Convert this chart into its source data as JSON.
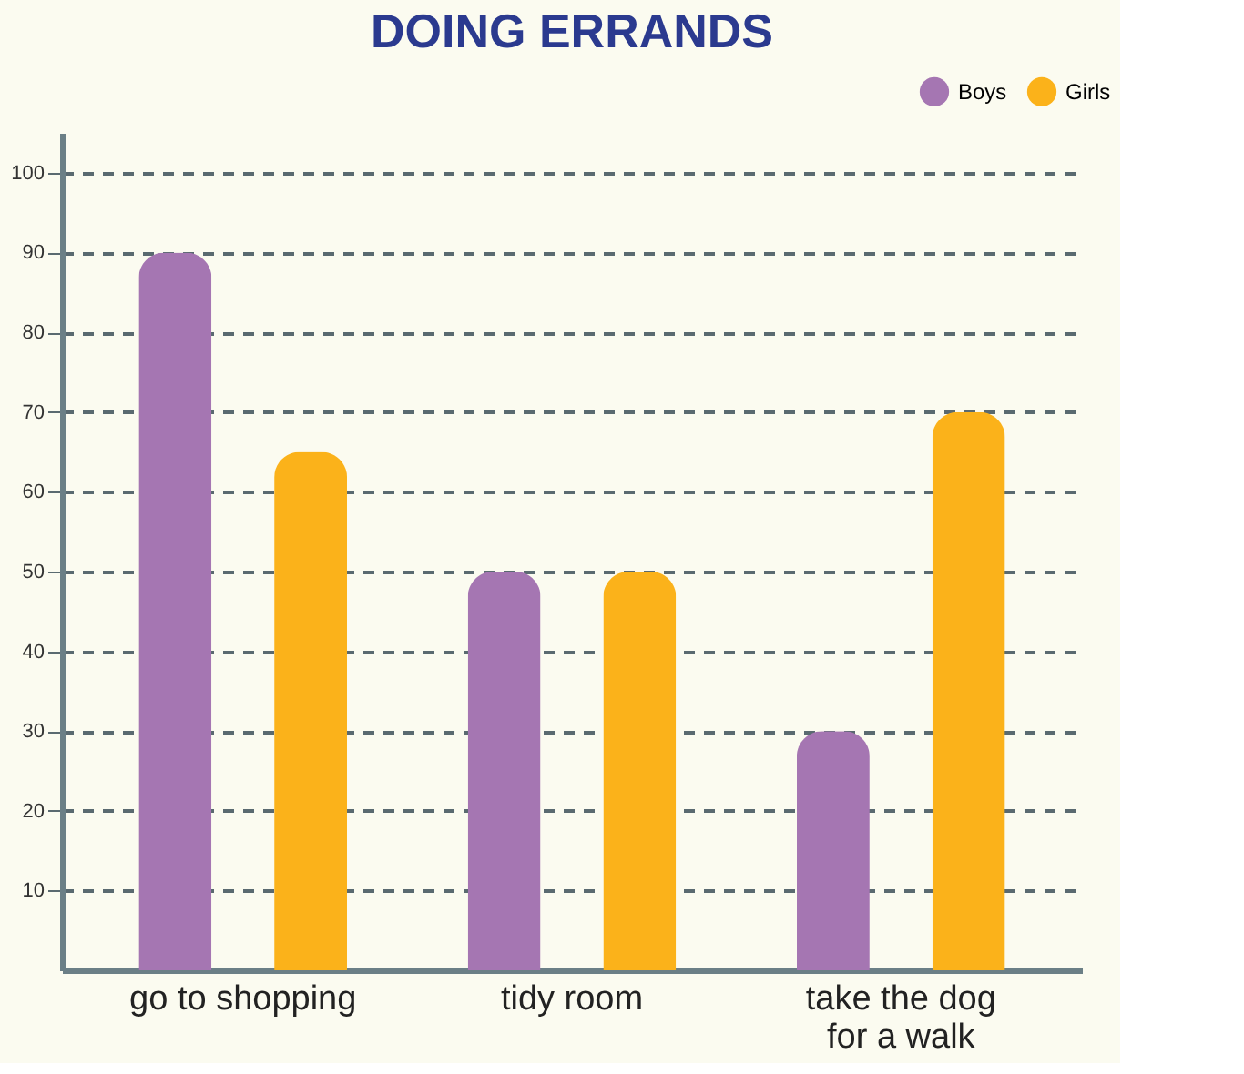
{
  "chart_data": {
    "type": "bar",
    "title": "DOING ERRANDS",
    "categories": [
      "go to shopping",
      "tidy room",
      "take the dog\nfor a walk"
    ],
    "series": [
      {
        "name": "Boys",
        "color": "#a576b2",
        "values": [
          90,
          50,
          30
        ]
      },
      {
        "name": "Girls",
        "color": "#fbb21a",
        "values": [
          65,
          50,
          70
        ]
      }
    ],
    "ylim": [
      0,
      105
    ],
    "yticks": [
      10,
      20,
      30,
      40,
      50,
      60,
      70,
      80,
      90,
      100
    ],
    "grid": "y",
    "legend": "top right"
  }
}
